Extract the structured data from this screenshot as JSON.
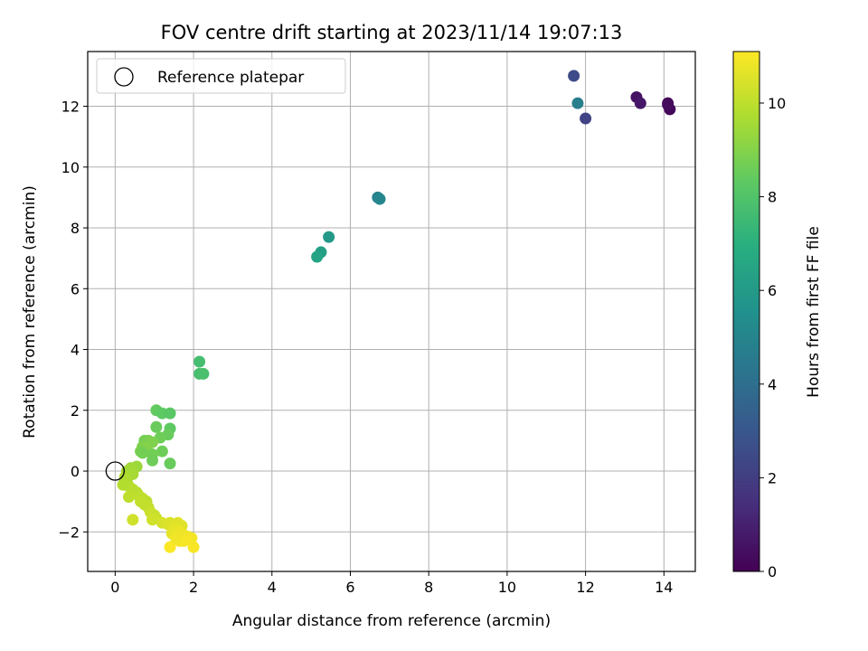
{
  "chart_data": {
    "type": "scatter",
    "title": "FOV centre drift starting at 2023/11/14 19:07:13",
    "xlabel": "Angular distance from reference (arcmin)",
    "ylabel": "Rotation from reference (arcmin)",
    "xlim": [
      -0.7,
      14.8
    ],
    "ylim": [
      -3.3,
      13.8
    ],
    "xticks": [
      0,
      2,
      4,
      6,
      8,
      10,
      12,
      14
    ],
    "yticks": [
      -2,
      0,
      2,
      4,
      6,
      8,
      10,
      12
    ],
    "xtick_labels": [
      "0",
      "2",
      "4",
      "6",
      "8",
      "10",
      "12",
      "14"
    ],
    "ytick_labels": [
      "−2",
      "0",
      "2",
      "4",
      "6",
      "8",
      "10",
      "12"
    ],
    "grid": true,
    "legend": {
      "label": "Reference platepar",
      "placement": "top-left"
    },
    "reference_point": {
      "x": 0,
      "y": 0
    },
    "colorbar": {
      "label": "Hours from first FF file",
      "colormap": "viridis",
      "range": [
        0,
        11.1
      ],
      "ticks": [
        0,
        2,
        4,
        6,
        8,
        10
      ],
      "tick_labels": [
        "0",
        "2",
        "4",
        "6",
        "8",
        "10"
      ]
    },
    "points": [
      {
        "x": 14.1,
        "y": 12.1,
        "c": 0.0
      },
      {
        "x": 14.15,
        "y": 11.9,
        "c": 0.2
      },
      {
        "x": 14.1,
        "y": 12.05,
        "c": 0.35
      },
      {
        "x": 13.3,
        "y": 12.3,
        "c": 0.5
      },
      {
        "x": 13.4,
        "y": 12.1,
        "c": 0.7
      },
      {
        "x": 12.0,
        "y": 11.6,
        "c": 2.2
      },
      {
        "x": 11.7,
        "y": 13.0,
        "c": 2.5
      },
      {
        "x": 11.8,
        "y": 12.1,
        "c": 4.7
      },
      {
        "x": 6.7,
        "y": 9.0,
        "c": 4.9
      },
      {
        "x": 6.75,
        "y": 8.95,
        "c": 5.1
      },
      {
        "x": 5.45,
        "y": 7.7,
        "c": 6.0
      },
      {
        "x": 5.25,
        "y": 7.2,
        "c": 6.2
      },
      {
        "x": 5.15,
        "y": 7.05,
        "c": 6.4
      },
      {
        "x": 2.15,
        "y": 3.6,
        "c": 7.7
      },
      {
        "x": 2.15,
        "y": 3.2,
        "c": 7.75
      },
      {
        "x": 2.25,
        "y": 3.2,
        "c": 7.8
      },
      {
        "x": 1.05,
        "y": 2.0,
        "c": 8.4
      },
      {
        "x": 1.2,
        "y": 1.9,
        "c": 8.3
      },
      {
        "x": 1.4,
        "y": 1.9,
        "c": 8.2
      },
      {
        "x": 1.05,
        "y": 1.45,
        "c": 8.5
      },
      {
        "x": 1.4,
        "y": 1.4,
        "c": 8.3
      },
      {
        "x": 1.35,
        "y": 1.2,
        "c": 8.5
      },
      {
        "x": 1.15,
        "y": 1.1,
        "c": 8.6
      },
      {
        "x": 0.75,
        "y": 1.0,
        "c": 8.7
      },
      {
        "x": 0.85,
        "y": 1.0,
        "c": 8.8
      },
      {
        "x": 0.95,
        "y": 0.95,
        "c": 8.9
      },
      {
        "x": 0.7,
        "y": 0.8,
        "c": 8.9
      },
      {
        "x": 0.8,
        "y": 0.75,
        "c": 9.0
      },
      {
        "x": 0.65,
        "y": 0.65,
        "c": 8.8
      },
      {
        "x": 0.7,
        "y": 0.6,
        "c": 8.7
      },
      {
        "x": 1.2,
        "y": 0.65,
        "c": 8.6
      },
      {
        "x": 0.95,
        "y": 0.55,
        "c": 8.7
      },
      {
        "x": 0.95,
        "y": 0.35,
        "c": 8.6
      },
      {
        "x": 1.4,
        "y": 0.25,
        "c": 8.5
      },
      {
        "x": 0.55,
        "y": 0.15,
        "c": 9.4
      },
      {
        "x": 0.4,
        "y": 0.1,
        "c": 9.5
      },
      {
        "x": 0.3,
        "y": 0.0,
        "c": 9.5
      },
      {
        "x": 0.45,
        "y": -0.1,
        "c": 9.6
      },
      {
        "x": 0.35,
        "y": -0.15,
        "c": 9.6
      },
      {
        "x": 0.25,
        "y": -0.2,
        "c": 9.7
      },
      {
        "x": 0.3,
        "y": -0.35,
        "c": 9.7
      },
      {
        "x": 0.2,
        "y": -0.45,
        "c": 9.8
      },
      {
        "x": 0.35,
        "y": -0.5,
        "c": 9.8
      },
      {
        "x": 0.45,
        "y": -0.6,
        "c": 9.9
      },
      {
        "x": 0.55,
        "y": -0.7,
        "c": 9.9
      },
      {
        "x": 0.6,
        "y": -0.8,
        "c": 9.95
      },
      {
        "x": 0.35,
        "y": -0.85,
        "c": 10.0
      },
      {
        "x": 0.7,
        "y": -0.9,
        "c": 10.0
      },
      {
        "x": 0.8,
        "y": -1.0,
        "c": 10.0
      },
      {
        "x": 0.65,
        "y": -1.0,
        "c": 10.1
      },
      {
        "x": 0.75,
        "y": -1.1,
        "c": 10.1
      },
      {
        "x": 0.85,
        "y": -1.2,
        "c": 10.1
      },
      {
        "x": 0.9,
        "y": -1.35,
        "c": 10.2
      },
      {
        "x": 1.0,
        "y": -1.45,
        "c": 10.2
      },
      {
        "x": 1.05,
        "y": -1.55,
        "c": 10.2
      },
      {
        "x": 0.95,
        "y": -1.6,
        "c": 10.3
      },
      {
        "x": 0.45,
        "y": -1.6,
        "c": 10.3
      },
      {
        "x": 1.2,
        "y": -1.7,
        "c": 10.4
      },
      {
        "x": 1.35,
        "y": -1.75,
        "c": 10.5
      },
      {
        "x": 1.4,
        "y": -1.7,
        "c": 10.5
      },
      {
        "x": 1.6,
        "y": -1.7,
        "c": 10.6
      },
      {
        "x": 1.7,
        "y": -1.8,
        "c": 10.6
      },
      {
        "x": 1.5,
        "y": -1.9,
        "c": 10.7
      },
      {
        "x": 1.45,
        "y": -2.05,
        "c": 10.7
      },
      {
        "x": 1.65,
        "y": -2.0,
        "c": 10.8
      },
      {
        "x": 1.75,
        "y": -2.1,
        "c": 10.8
      },
      {
        "x": 1.85,
        "y": -2.15,
        "c": 10.9
      },
      {
        "x": 1.6,
        "y": -2.25,
        "c": 10.9
      },
      {
        "x": 1.95,
        "y": -2.2,
        "c": 10.95
      },
      {
        "x": 1.75,
        "y": -2.3,
        "c": 11.0
      },
      {
        "x": 1.65,
        "y": -2.3,
        "c": 11.0
      },
      {
        "x": 2.0,
        "y": -2.5,
        "c": 11.0
      },
      {
        "x": 1.4,
        "y": -2.5,
        "c": 11.05
      },
      {
        "x": 1.55,
        "y": -2.2,
        "c": 10.9
      }
    ]
  }
}
